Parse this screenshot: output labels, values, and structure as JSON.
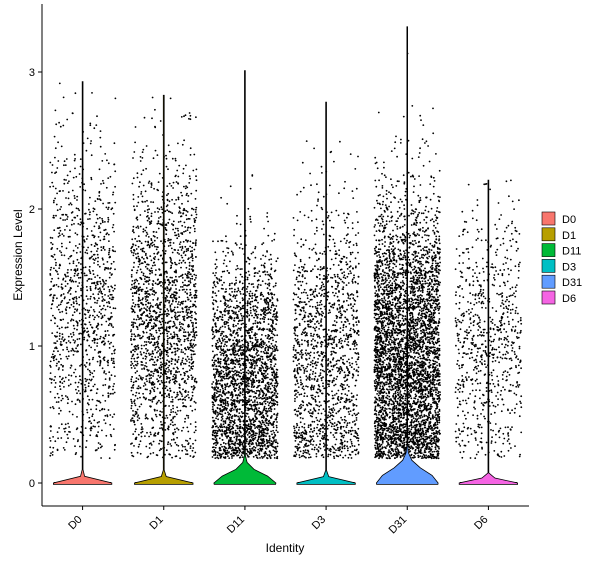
{
  "chart_data": {
    "type": "violin",
    "xlabel": "Identity",
    "ylabel": "Expression Level",
    "categories": [
      "D0",
      "D1",
      "D11",
      "D3",
      "D31",
      "D6"
    ],
    "colors": [
      "#F8766D",
      "#B79F00",
      "#00BA38",
      "#00BFC4",
      "#619CFF",
      "#F564E3"
    ],
    "yticks": [
      0,
      1,
      2,
      3
    ],
    "ylim": [
      -0.18,
      3.35
    ],
    "grid": false,
    "legend": {
      "position": "right",
      "entries": [
        "D0",
        "D1",
        "D11",
        "D3",
        "D31",
        "D6"
      ]
    },
    "violins": [
      {
        "name": "D0",
        "max": 2.93,
        "n_points": 1100,
        "zero_width": 0.4,
        "upper_shape": 0.0,
        "upper_extent": 0.0
      },
      {
        "name": "D1",
        "max": 2.83,
        "n_points": 1900,
        "zero_width": 0.4,
        "upper_shape": 0.0,
        "upper_extent": 0.0
      },
      {
        "name": "D11",
        "max": 3.01,
        "n_points": 2600,
        "zero_width": 0.42,
        "upper_shape": 0.45,
        "upper_extent": 0.12
      },
      {
        "name": "D3",
        "max": 2.78,
        "n_points": 1500,
        "zero_width": 0.4,
        "upper_shape": 0.0,
        "upper_extent": 0.0
      },
      {
        "name": "D31",
        "max": 3.33,
        "n_points": 4500,
        "zero_width": 0.42,
        "upper_shape": 0.25,
        "upper_extent": 0.16
      },
      {
        "name": "D6",
        "max": 2.21,
        "n_points": 750,
        "zero_width": 0.4,
        "upper_shape": 0.0,
        "upper_extent": 0.0
      }
    ],
    "point_distribution": [
      {
        "name": "D0",
        "mean": 1.25,
        "sd": 0.6
      },
      {
        "name": "D1",
        "mean": 1.2,
        "sd": 0.55
      },
      {
        "name": "D11",
        "mean": 0.75,
        "sd": 0.45
      },
      {
        "name": "D3",
        "mean": 0.9,
        "sd": 0.55
      },
      {
        "name": "D31",
        "mean": 0.95,
        "sd": 0.55
      },
      {
        "name": "D6",
        "mean": 1.0,
        "sd": 0.5
      }
    ]
  }
}
